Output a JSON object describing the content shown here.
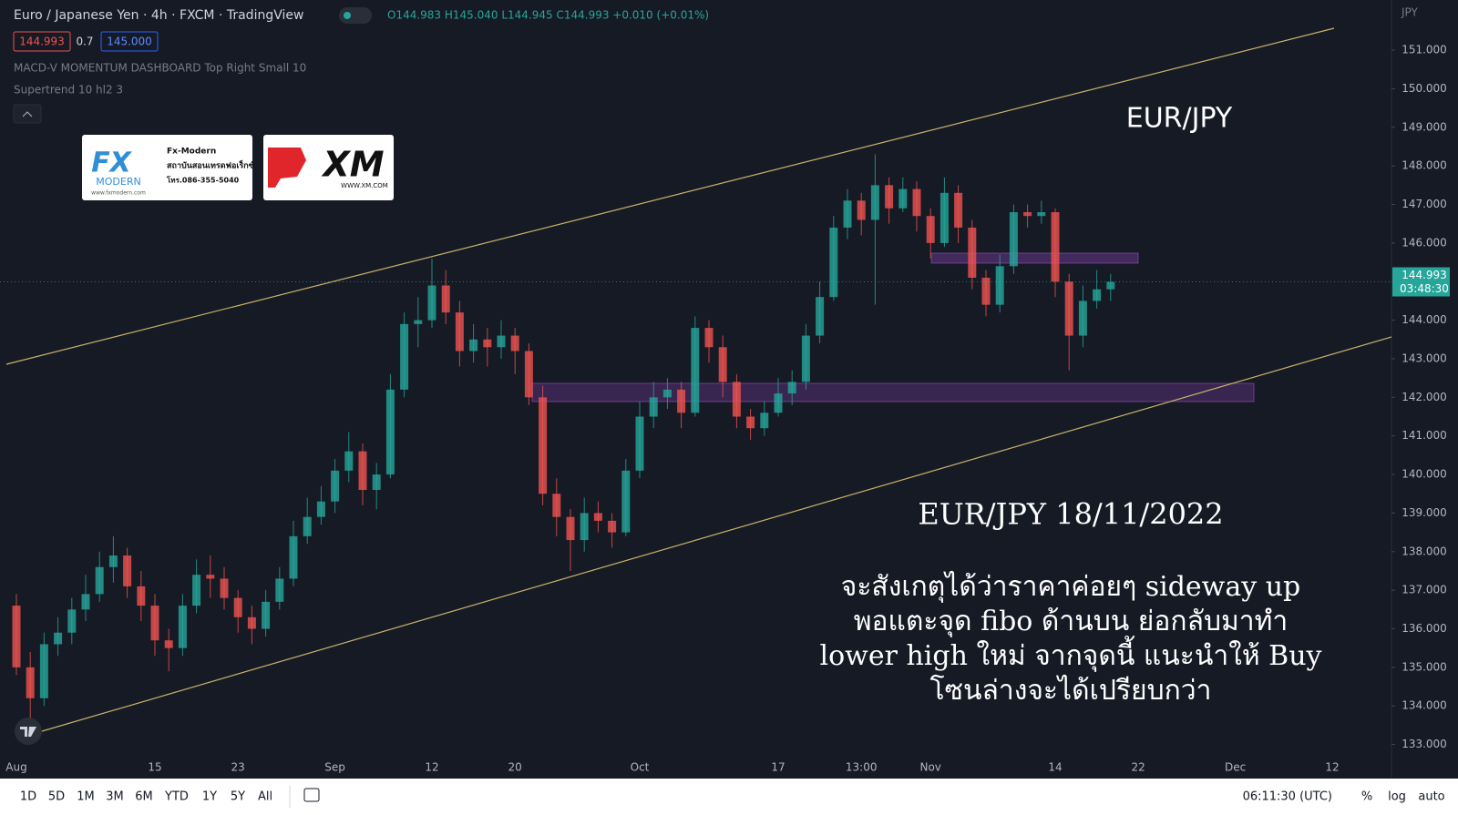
{
  "header": {
    "symbol": "Euro / Japanese Yen · 4h · FXCM · TradingView",
    "ohlc": "O144.983 H145.040 L144.945 C144.993 +0.010 (+0.01%)",
    "bid": "144.993",
    "spread": "0.7",
    "ask": "145.000",
    "indicators": [
      "MACD-V MOMENTUM DASHBOARD Top Right Small 10",
      "Supertrend 10 hl2 3"
    ],
    "currency": "JPY"
  },
  "logos": {
    "fx": {
      "brand": "FX",
      "name": "MODERN",
      "title": "Fx-Modern",
      "line1": "สถาบันสอนเทรดฟอเร็กซ์",
      "line2": "โทร.086-355-5040",
      "url": "www.fxmodern.com"
    },
    "xm": {
      "brand": "XM",
      "url": "WWW.XM.COM"
    }
  },
  "chart_data": {
    "type": "candlestick",
    "title": "EUR/JPY",
    "subtitle": "EUR/JPY 18/11/2022",
    "annotation": [
      "จะสังเกตุได้ว่าราคาค่อยๆ  sideway up",
      "พอแตะจุด fibo ด้านบน ย่อกลับมาทำ",
      "lower high ใหม่ จากจุดนี้ แนะนำให้ Buy",
      "โซนล่างจะได้เปรียบกว่า"
    ],
    "categories": [
      "Aug",
      null,
      null,
      null,
      null,
      null,
      null,
      null,
      null,
      null,
      "15",
      null,
      null,
      null,
      null,
      null,
      "23",
      null,
      null,
      null,
      null,
      null,
      null,
      "Sep",
      null,
      null,
      null,
      null,
      null,
      null,
      "12",
      null,
      null,
      null,
      null,
      null,
      "20",
      null,
      null,
      null,
      null,
      null,
      null,
      null,
      null,
      "Oct",
      null,
      null,
      null,
      null,
      null,
      null,
      null,
      null,
      null,
      "17",
      null,
      null,
      null,
      null,
      null,
      "13:00",
      null,
      null,
      null,
      null,
      "Nov",
      null,
      null,
      null,
      null,
      null,
      null,
      null,
      null,
      "14",
      null,
      null,
      null,
      null,
      null,
      "22",
      null,
      null,
      null,
      null,
      null,
      null,
      "Dec",
      null,
      null,
      null,
      null,
      null,
      null,
      "12"
    ],
    "open": [
      136.6,
      135.0,
      134.2,
      135.6,
      135.9,
      136.5,
      136.9,
      137.6,
      137.9,
      137.1,
      136.6,
      135.7,
      135.5,
      136.6,
      137.4,
      137.3,
      136.8,
      136.3,
      136.0,
      136.7,
      137.3,
      138.4,
      138.9,
      139.3,
      140.1,
      140.6,
      139.6,
      140.0,
      142.2,
      143.9,
      144.0,
      144.9,
      144.2,
      143.2,
      143.5,
      143.3,
      143.6,
      143.2,
      142.0,
      139.5,
      138.9,
      138.3,
      139.0,
      138.8,
      138.5,
      140.1,
      141.5,
      142.0,
      142.2,
      141.6,
      143.8,
      143.3,
      142.4,
      141.5,
      141.2,
      141.6,
      142.1,
      142.4,
      143.6,
      144.6,
      146.4,
      147.1,
      146.6,
      147.5,
      146.9,
      147.4,
      146.7,
      146.0,
      147.3,
      146.4,
      145.1,
      144.4,
      145.4,
      146.8,
      146.7,
      146.8,
      145.0,
      143.6,
      144.5,
      144.8,
      null,
      null,
      null,
      null,
      null,
      null,
      null,
      null,
      null,
      null,
      null,
      null,
      null,
      null,
      null,
      null
    ],
    "high": [
      136.9,
      135.4,
      135.9,
      136.3,
      136.8,
      137.4,
      138.0,
      138.4,
      138.1,
      137.5,
      136.9,
      136.0,
      136.9,
      137.8,
      137.9,
      137.6,
      137.0,
      136.6,
      137.0,
      137.6,
      138.8,
      139.4,
      139.7,
      140.4,
      141.1,
      140.8,
      140.3,
      142.6,
      144.2,
      144.6,
      145.6,
      145.3,
      144.5,
      143.9,
      143.8,
      144.0,
      143.8,
      143.4,
      142.3,
      139.9,
      139.1,
      139.4,
      139.3,
      139.0,
      140.4,
      141.9,
      142.4,
      142.5,
      142.4,
      144.1,
      144.0,
      143.6,
      142.6,
      141.7,
      141.9,
      142.5,
      142.7,
      143.9,
      145.0,
      146.7,
      147.4,
      147.3,
      148.3,
      147.7,
      147.7,
      147.6,
      146.9,
      147.7,
      147.5,
      146.6,
      145.3,
      145.7,
      147.0,
      147.0,
      147.1,
      146.9,
      145.2,
      144.9,
      145.3,
      145.2,
      null,
      null,
      null,
      null,
      null,
      null,
      null,
      null,
      null,
      null,
      null,
      null,
      null,
      null,
      null,
      null
    ],
    "low": [
      134.8,
      133.6,
      134.0,
      135.3,
      135.6,
      136.2,
      136.7,
      137.2,
      136.8,
      136.2,
      135.3,
      134.9,
      135.3,
      136.4,
      136.8,
      136.5,
      135.9,
      135.6,
      135.8,
      136.5,
      137.1,
      138.2,
      138.7,
      139.0,
      139.8,
      139.2,
      139.1,
      139.9,
      142.0,
      143.3,
      143.8,
      143.9,
      142.8,
      142.9,
      142.8,
      143.0,
      142.6,
      141.8,
      139.2,
      138.4,
      137.5,
      138.0,
      138.5,
      138.1,
      138.4,
      139.9,
      141.2,
      141.7,
      141.2,
      141.5,
      142.9,
      142.0,
      141.2,
      140.9,
      141.0,
      141.5,
      141.8,
      142.2,
      143.4,
      144.5,
      146.1,
      146.2,
      144.4,
      146.5,
      146.8,
      146.3,
      145.6,
      145.9,
      146.0,
      144.8,
      144.1,
      144.2,
      145.2,
      146.4,
      146.5,
      144.6,
      142.7,
      143.3,
      144.3,
      144.5,
      null,
      null,
      null,
      null,
      null,
      null,
      null,
      null,
      null,
      null,
      null,
      null,
      null,
      null,
      null,
      null
    ],
    "close": [
      135.0,
      134.2,
      135.6,
      135.9,
      136.5,
      136.9,
      137.6,
      137.9,
      137.1,
      136.6,
      135.7,
      135.5,
      136.6,
      137.4,
      137.3,
      136.8,
      136.3,
      136.0,
      136.7,
      137.3,
      138.4,
      138.9,
      139.3,
      140.1,
      140.6,
      139.6,
      140.0,
      142.2,
      143.9,
      144.0,
      144.9,
      144.2,
      143.2,
      143.5,
      143.3,
      143.6,
      143.2,
      142.0,
      139.5,
      138.9,
      138.3,
      139.0,
      138.8,
      138.5,
      140.1,
      141.5,
      142.0,
      142.2,
      141.6,
      143.8,
      143.3,
      142.4,
      141.5,
      141.2,
      141.6,
      142.1,
      142.4,
      143.6,
      144.6,
      146.4,
      147.1,
      146.6,
      147.5,
      146.9,
      147.4,
      146.7,
      146.0,
      147.3,
      146.4,
      145.1,
      144.4,
      145.4,
      146.8,
      146.7,
      146.8,
      145.0,
      143.6,
      144.5,
      144.8,
      144.993,
      null,
      null,
      null,
      null,
      null,
      null,
      null,
      null,
      null,
      null,
      null,
      null,
      null,
      null,
      null,
      null
    ],
    "up_color": "#26a69a",
    "down_color": "#ef5350",
    "ylim": [
      132.66,
      152.3
    ],
    "yticks": [
      {
        "value": 133,
        "label": "133.000"
      },
      {
        "value": 134,
        "label": "134.000"
      },
      {
        "value": 135,
        "label": "135.000"
      },
      {
        "value": 136,
        "label": "136.000"
      },
      {
        "value": 137,
        "label": "137.000"
      },
      {
        "value": 138,
        "label": "138.000"
      },
      {
        "value": 139,
        "label": "139.000"
      },
      {
        "value": 140,
        "label": "140.000"
      },
      {
        "value": 141,
        "label": "141.000"
      },
      {
        "value": 142,
        "label": "142.000"
      },
      {
        "value": 143,
        "label": "143.000"
      },
      {
        "value": 144,
        "label": "144.000"
      },
      {
        "value": 145,
        "label": "145.000"
      },
      {
        "value": 146,
        "label": "146.000"
      },
      {
        "value": 147,
        "label": "147.000"
      },
      {
        "value": 148,
        "label": "148.000"
      },
      {
        "value": 149,
        "label": "149.000"
      },
      {
        "value": 150,
        "label": "150.000"
      },
      {
        "value": 151,
        "label": "151.000"
      }
    ],
    "last_price": 144.993,
    "countdown": "03:48:30",
    "grid": false
  },
  "toolbar": {
    "ranges": [
      "1D",
      "5D",
      "1M",
      "3M",
      "6M",
      "YTD",
      "1Y",
      "5Y",
      "All"
    ],
    "clock": "06:11:30 (UTC)",
    "options": [
      "%",
      "log",
      "auto"
    ]
  }
}
